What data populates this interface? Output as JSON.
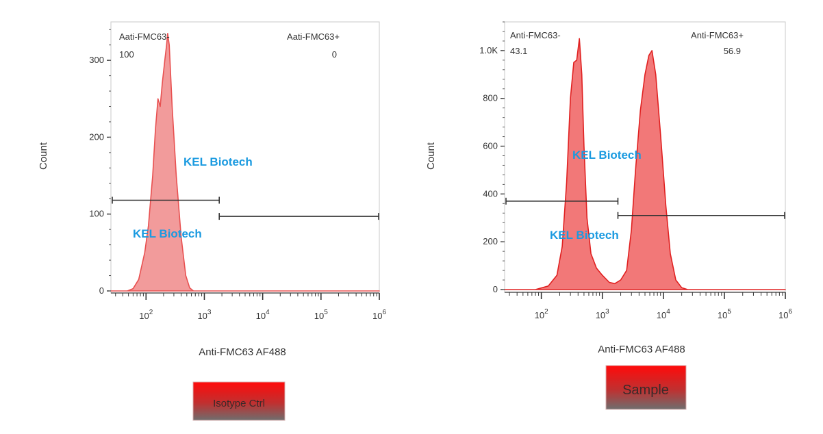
{
  "chart_data": [
    {
      "type": "histogram",
      "xlabel": "Anti-FMC63 AF488",
      "ylabel": "Count",
      "xscale": "log",
      "xlim": [
        25,
        1000000
      ],
      "ylim": [
        0,
        350
      ],
      "yticks": [
        {
          "value": 0,
          "label": "0"
        },
        {
          "value": 100,
          "label": "100"
        },
        {
          "value": 200,
          "label": "200"
        },
        {
          "value": 300,
          "label": "300"
        }
      ],
      "xticks": [
        {
          "value": 100,
          "base": "10",
          "exp": "2"
        },
        {
          "value": 1000,
          "base": "10",
          "exp": "3"
        },
        {
          "value": 10000,
          "base": "10",
          "exp": "4"
        },
        {
          "value": 100000,
          "base": "10",
          "exp": "5"
        },
        {
          "value": 1000000,
          "base": "10",
          "exp": "6"
        }
      ],
      "color": "#f08a8a",
      "stroke": "#e85050",
      "gates": [
        {
          "name": "Aati-FMC63-",
          "percent": "100",
          "x_from": 25,
          "x_to": 1800,
          "y": 118
        },
        {
          "name": "Aati-FMC63+",
          "percent": "0",
          "x_from": 1800,
          "x_to": 1000000,
          "y": 97
        }
      ],
      "histogram": [
        [
          25,
          0
        ],
        [
          48,
          0
        ],
        [
          60,
          3
        ],
        [
          75,
          15
        ],
        [
          95,
          50
        ],
        [
          110,
          85
        ],
        [
          130,
          150
        ],
        [
          145,
          210
        ],
        [
          160,
          250
        ],
        [
          175,
          240
        ],
        [
          190,
          270
        ],
        [
          210,
          300
        ],
        [
          225,
          320
        ],
        [
          235,
          335
        ],
        [
          250,
          320
        ],
        [
          280,
          240
        ],
        [
          330,
          150
        ],
        [
          400,
          70
        ],
        [
          480,
          20
        ],
        [
          560,
          4
        ],
        [
          650,
          0
        ],
        [
          1000000,
          0
        ]
      ],
      "badge": "Isotype Ctrl",
      "watermarks": [
        "KEL Biotech",
        "KEL Biotech"
      ]
    },
    {
      "type": "histogram",
      "xlabel": "Anti-FMC63 AF488",
      "ylabel": "Count",
      "xscale": "log",
      "xlim": [
        25,
        1000000
      ],
      "ylim": [
        0,
        1120
      ],
      "yticks": [
        {
          "value": 0,
          "label": "0"
        },
        {
          "value": 200,
          "label": "200"
        },
        {
          "value": 400,
          "label": "400"
        },
        {
          "value": 600,
          "label": "600"
        },
        {
          "value": 800,
          "label": "800"
        },
        {
          "value": 1000,
          "label": "1.0K"
        }
      ],
      "xticks": [
        {
          "value": 100,
          "base": "10",
          "exp": "2"
        },
        {
          "value": 1000,
          "base": "10",
          "exp": "3"
        },
        {
          "value": 10000,
          "base": "10",
          "exp": "4"
        },
        {
          "value": 100000,
          "base": "10",
          "exp": "5"
        },
        {
          "value": 1000000,
          "base": "10",
          "exp": "6"
        }
      ],
      "color": "#f06060",
      "stroke": "#e02020",
      "gates": [
        {
          "name": "Anti-FMC63-",
          "percent": "43.1",
          "x_from": 25,
          "x_to": 1800,
          "y": 370
        },
        {
          "name": "Anti-FMC63+",
          "percent": "56.9",
          "x_from": 1800,
          "x_to": 1000000,
          "y": 310
        }
      ],
      "histogram": [
        [
          25,
          0
        ],
        [
          80,
          0
        ],
        [
          130,
          15
        ],
        [
          180,
          60
        ],
        [
          220,
          180
        ],
        [
          260,
          450
        ],
        [
          300,
          800
        ],
        [
          340,
          950
        ],
        [
          380,
          960
        ],
        [
          420,
          1050
        ],
        [
          460,
          900
        ],
        [
          500,
          600
        ],
        [
          560,
          300
        ],
        [
          650,
          150
        ],
        [
          800,
          90
        ],
        [
          1000,
          60
        ],
        [
          1300,
          30
        ],
        [
          1600,
          25
        ],
        [
          2000,
          40
        ],
        [
          2500,
          80
        ],
        [
          3000,
          250
        ],
        [
          3500,
          500
        ],
        [
          4200,
          750
        ],
        [
          5000,
          900
        ],
        [
          5800,
          980
        ],
        [
          6500,
          1000
        ],
        [
          7500,
          900
        ],
        [
          9000,
          650
        ],
        [
          11000,
          350
        ],
        [
          13000,
          150
        ],
        [
          16000,
          40
        ],
        [
          20000,
          8
        ],
        [
          25000,
          0
        ],
        [
          1000000,
          0
        ]
      ],
      "badge": "Sample",
      "watermarks": [
        "KEL Biotech",
        "KEL Biotech"
      ]
    }
  ]
}
